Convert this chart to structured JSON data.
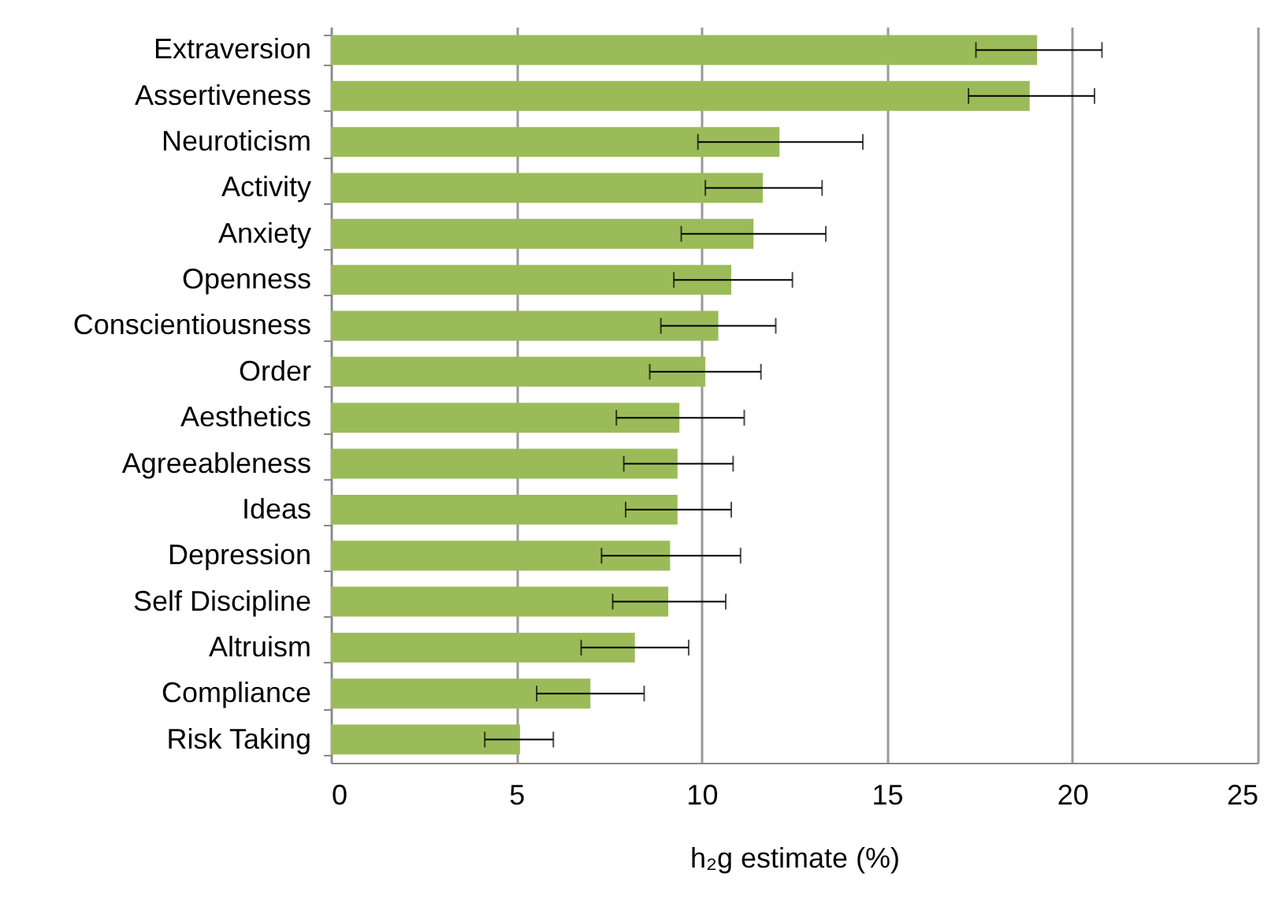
{
  "chart_data": {
    "type": "bar",
    "orientation": "horizontal",
    "xlabel": "h₂g estimate (%)",
    "categories": [
      "Extraversion",
      "Assertiveness",
      "Neuroticism",
      "Activity",
      "Anxiety",
      "Openness",
      "Conscientiousness",
      "Order",
      "Aesthetics",
      "Agreeableness",
      "Ideas",
      "Depression",
      "Self Discipline",
      "Altruism",
      "Compliance",
      "Risk Taking"
    ],
    "values": [
      19.05,
      18.85,
      12.1,
      11.65,
      11.4,
      10.8,
      10.45,
      10.1,
      9.4,
      9.35,
      9.35,
      9.15,
      9.1,
      8.2,
      7.0,
      5.1
    ],
    "errors": [
      [
        17.4,
        20.8
      ],
      [
        17.2,
        20.6
      ],
      [
        9.9,
        14.35
      ],
      [
        10.1,
        13.25
      ],
      [
        9.45,
        13.35
      ],
      [
        9.25,
        12.45
      ],
      [
        8.9,
        12.0
      ],
      [
        8.6,
        11.6
      ],
      [
        7.7,
        11.15
      ],
      [
        7.9,
        10.85
      ],
      [
        7.95,
        10.8
      ],
      [
        7.3,
        11.05
      ],
      [
        7.6,
        10.65
      ],
      [
        6.75,
        9.65
      ],
      [
        5.55,
        8.45
      ],
      [
        4.15,
        6.0
      ]
    ],
    "color": "#9bbb59",
    "xlim": [
      0,
      25
    ],
    "xticks": [
      0,
      5,
      10,
      15,
      20,
      25
    ],
    "grid": "x"
  }
}
